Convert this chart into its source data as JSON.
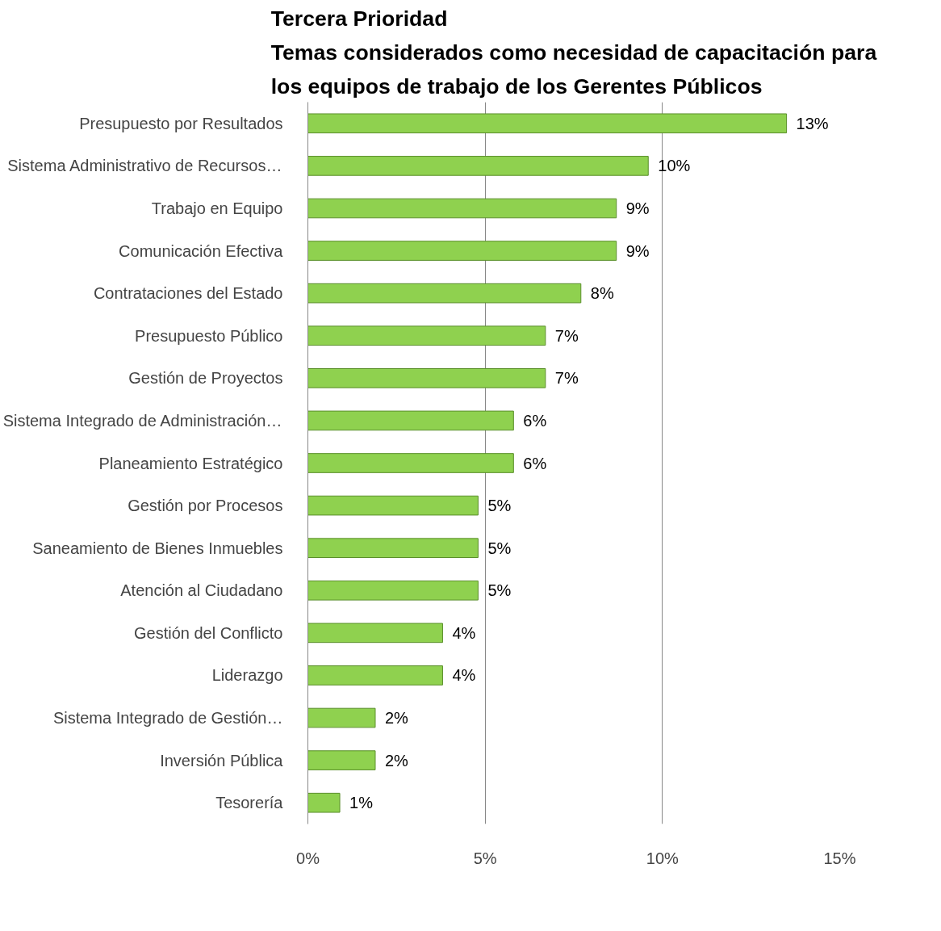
{
  "chart_data": {
    "type": "bar",
    "orientation": "horizontal",
    "title": "Tercera Prioridad\nTemas considerados como necesidad de capacitación para\nlos equipos de trabajo de los Gerentes Públicos",
    "categories": [
      "Presupuesto por Resultados",
      "Sistema Administrativo de Recursos…",
      "Trabajo en Equipo",
      "Comunicación Efectiva",
      "Contrataciones del Estado",
      "Presupuesto Público",
      "Gestión de Proyectos",
      "Sistema Integrado de Administración…",
      "Planeamiento Estratégico",
      "Gestión por Procesos",
      "Saneamiento de Bienes Inmuebles",
      "Atención al Ciudadano",
      "Gestión del Conflicto",
      "Liderazgo",
      "Sistema Integrado de Gestión…",
      "Inversión Pública",
      "Tesorería"
    ],
    "values": [
      13.5,
      9.6,
      8.7,
      8.7,
      7.7,
      6.7,
      6.7,
      5.8,
      5.8,
      4.8,
      4.8,
      4.8,
      3.8,
      3.8,
      1.9,
      1.9,
      0.9
    ],
    "value_labels": [
      "13%",
      "10%",
      "9%",
      "9%",
      "8%",
      "7%",
      "7%",
      "6%",
      "6%",
      "5%",
      "5%",
      "5%",
      "4%",
      "4%",
      "2%",
      "2%",
      "1%"
    ],
    "color": "#8fd14f",
    "xlim": [
      0,
      15
    ],
    "xticks": [
      {
        "value": 0,
        "label": "0%"
      },
      {
        "value": 5,
        "label": "5%"
      },
      {
        "value": 10,
        "label": "10%"
      },
      {
        "value": 15,
        "label": "15%"
      }
    ],
    "grid": "x"
  }
}
